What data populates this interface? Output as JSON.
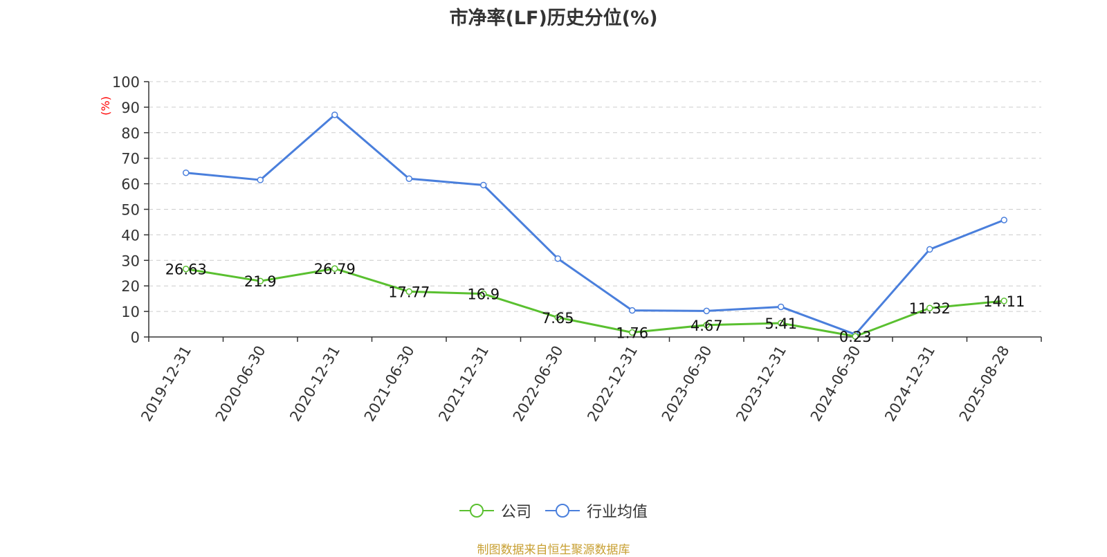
{
  "chart_data": {
    "type": "line",
    "title": "市净率(LF)历史分位(%)",
    "ylabel": "(%)",
    "ylim": [
      0,
      100
    ],
    "yticks": [
      0,
      10,
      20,
      30,
      40,
      50,
      60,
      70,
      80,
      90,
      100
    ],
    "grid": true,
    "legend_position": "bottom-center",
    "categories": [
      "2019-12-31",
      "2020-06-30",
      "2020-12-31",
      "2021-06-30",
      "2021-12-31",
      "2022-06-30",
      "2022-12-31",
      "2023-06-30",
      "2023-12-31",
      "2024-06-30",
      "2024-12-31",
      "2025-08-28"
    ],
    "series": [
      {
        "name": "公司",
        "color": "#5ac030",
        "values": [
          26.63,
          21.9,
          26.79,
          17.77,
          16.9,
          7.65,
          1.76,
          4.67,
          5.41,
          0.23,
          11.32,
          14.11
        ],
        "labels": [
          "26.63",
          "21.9",
          "26.79",
          "17.77",
          "16.9",
          "7.65",
          "1.76",
          "4.67",
          "5.41",
          "0.23",
          "11.32",
          "14.11"
        ]
      },
      {
        "name": "行业均值",
        "color": "#4a7fdc",
        "values": [
          64.3,
          61.5,
          87.0,
          62.0,
          59.5,
          30.7,
          10.4,
          10.2,
          11.8,
          1.0,
          34.3,
          45.8
        ]
      }
    ]
  },
  "source_note": "制图数据来自恒生聚源数据库"
}
